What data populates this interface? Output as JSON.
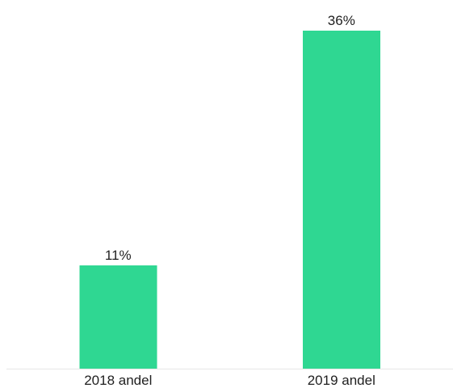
{
  "chart_data": {
    "type": "bar",
    "categories": [
      "2018 andel",
      "2019 andel"
    ],
    "values": [
      11,
      36
    ],
    "data_labels": [
      "11%",
      "36%"
    ],
    "title": "",
    "xlabel": "",
    "ylabel": "",
    "ylim": [
      0,
      36
    ],
    "grid": false,
    "legend": "none",
    "bar_color": "#2fd792",
    "axis_color": "#e6e6e6"
  }
}
